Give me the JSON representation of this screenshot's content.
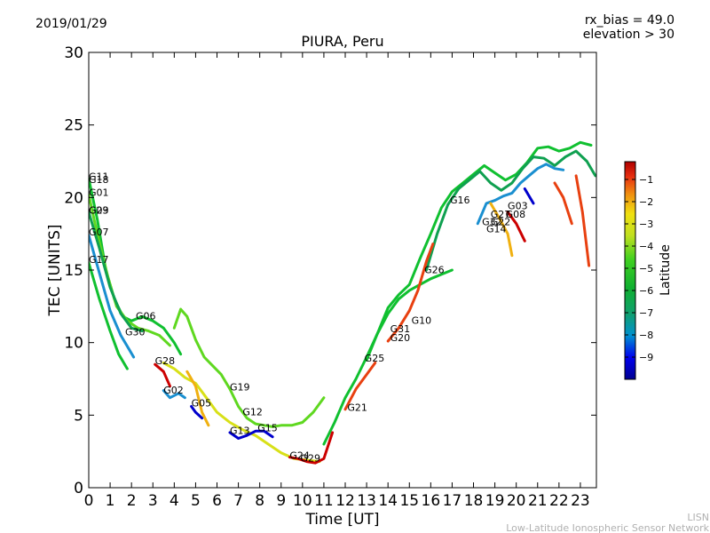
{
  "header": {
    "date": "2019/01/29",
    "rx_bias": "rx_bias = 49.0",
    "elevation": "elevation > 30"
  },
  "footer": {
    "line1": "LISN",
    "line2": "Low-Latitude Ionospheric Sensor Network"
  },
  "colors": {
    "sat_m9": "#0000cc",
    "sat_m8": "#1a8fd0",
    "sat_m7": "#0fa050",
    "sat_m6": "#10c030",
    "sat_m5": "#5fd820",
    "sat_m4": "#d8e018",
    "sat_m3": "#f0b010",
    "sat_m2": "#e84010",
    "sat_m1": "#cc0000"
  },
  "chart_data": {
    "type": "scatter",
    "title": "PIURA, Peru",
    "xlabel": "Time [UT]",
    "ylabel": "TEC [UNITS]",
    "xlim": [
      0,
      23.75
    ],
    "ylim": [
      0,
      30
    ],
    "xticks": [
      "0",
      "1",
      "2",
      "3",
      "4",
      "5",
      "6",
      "7",
      "8",
      "9",
      "10",
      "11",
      "12",
      "13",
      "14",
      "15",
      "16",
      "17",
      "18",
      "19",
      "20",
      "21",
      "22",
      "23"
    ],
    "yticks": [
      "0",
      "5",
      "10",
      "15",
      "20",
      "25",
      "30"
    ],
    "colorbar": {
      "label": "Latitude",
      "range": [
        -10,
        -0.2
      ],
      "ticks": [
        "−1",
        "−2",
        "−3",
        "−4",
        "−5",
        "−6",
        "−7",
        "−8",
        "−9"
      ]
    },
    "satellite_labels": [
      {
        "name": "G11",
        "x": 0.0,
        "y": 21.2
      },
      {
        "name": "G18",
        "x": 0.0,
        "y": 21.0
      },
      {
        "name": "G01",
        "x": 0.0,
        "y": 20.1
      },
      {
        "name": "G23",
        "x": 0.0,
        "y": 18.9
      },
      {
        "name": "G09",
        "x": 0.0,
        "y": 18.9
      },
      {
        "name": "G07",
        "x": 0.0,
        "y": 17.4
      },
      {
        "name": "G17",
        "x": 0.0,
        "y": 15.5
      },
      {
        "name": "G06",
        "x": 2.2,
        "y": 11.6
      },
      {
        "name": "G30",
        "x": 1.7,
        "y": 10.5
      },
      {
        "name": "G28",
        "x": 3.1,
        "y": 8.5
      },
      {
        "name": "G02",
        "x": 3.5,
        "y": 6.5
      },
      {
        "name": "G05",
        "x": 4.8,
        "y": 5.6
      },
      {
        "name": "G19",
        "x": 6.6,
        "y": 6.7
      },
      {
        "name": "G12",
        "x": 7.2,
        "y": 5.0
      },
      {
        "name": "G13",
        "x": 6.6,
        "y": 3.7
      },
      {
        "name": "G15",
        "x": 7.9,
        "y": 3.9
      },
      {
        "name": "G24",
        "x": 9.4,
        "y": 2.0
      },
      {
        "name": "G29",
        "x": 9.9,
        "y": 1.8
      },
      {
        "name": "G21",
        "x": 12.1,
        "y": 5.3
      },
      {
        "name": "G25",
        "x": 12.9,
        "y": 8.7
      },
      {
        "name": "G31",
        "x": 14.1,
        "y": 10.7
      },
      {
        "name": "G20",
        "x": 14.1,
        "y": 10.1
      },
      {
        "name": "G10",
        "x": 15.1,
        "y": 11.3
      },
      {
        "name": "G26",
        "x": 15.7,
        "y": 14.8
      },
      {
        "name": "G16",
        "x": 16.9,
        "y": 19.6
      },
      {
        "name": "G03",
        "x": 19.6,
        "y": 19.2
      },
      {
        "name": "G27",
        "x": 18.8,
        "y": 18.6
      },
      {
        "name": "G08",
        "x": 19.5,
        "y": 18.6
      },
      {
        "name": "G32",
        "x": 18.4,
        "y": 18.1
      },
      {
        "name": "G22",
        "x": 18.8,
        "y": 18.1
      },
      {
        "name": "G14",
        "x": 18.6,
        "y": 17.6
      }
    ]
  }
}
